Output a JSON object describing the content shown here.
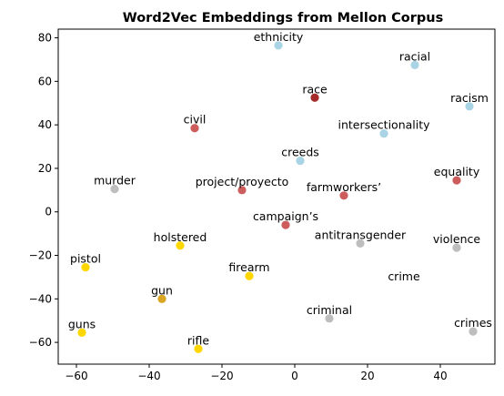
{
  "chart_data": {
    "type": "scatter",
    "title": "Word2Vec Embeddings from Mellon Corpus",
    "xlabel": "",
    "ylabel": "",
    "xlim": [
      -65,
      55
    ],
    "ylim": [
      -70,
      84
    ],
    "xticks": [
      -60,
      -40,
      -20,
      0,
      20,
      40
    ],
    "yticks": [
      -60,
      -40,
      -20,
      0,
      20,
      40,
      60,
      80
    ],
    "grid": false,
    "points": [
      {
        "label": "ethnicity",
        "x": -4.5,
        "y": 76.5,
        "color": "#a8d4e6",
        "marker": true
      },
      {
        "label": "racial",
        "x": 33,
        "y": 67.5,
        "color": "#a8d4e6",
        "marker": true
      },
      {
        "label": "race",
        "x": 5.5,
        "y": 52.5,
        "color": "#a52a2a",
        "marker": true
      },
      {
        "label": "racism",
        "x": 48,
        "y": 48.5,
        "color": "#a8d4e6",
        "marker": true
      },
      {
        "label": "civil",
        "x": -27.5,
        "y": 38.5,
        "color": "#cd5c5c",
        "marker": true
      },
      {
        "label": "intersectionality",
        "x": 24.5,
        "y": 36,
        "color": "#a8d4e6",
        "marker": true
      },
      {
        "label": "creeds",
        "x": 1.5,
        "y": 23.5,
        "color": "#a8d4e6",
        "marker": true
      },
      {
        "label": "equality",
        "x": 44.5,
        "y": 14.5,
        "color": "#cd5c5c",
        "marker": true
      },
      {
        "label": "murder",
        "x": -49.5,
        "y": 10.5,
        "color": "#bebebe",
        "marker": true
      },
      {
        "label": "project/proyecto",
        "x": -14.5,
        "y": 10,
        "color": "#cd5c5c",
        "marker": true
      },
      {
        "label": "farmworkers’",
        "x": 13.5,
        "y": 7.5,
        "color": "#cd5c5c",
        "marker": true
      },
      {
        "label": "campaign’s",
        "x": -2.5,
        "y": -6,
        "color": "#cd5c5c",
        "marker": true
      },
      {
        "label": "antitransgender",
        "x": 18,
        "y": -14.5,
        "color": "#bebebe",
        "marker": true
      },
      {
        "label": "holstered",
        "x": -31.5,
        "y": -15.5,
        "color": "#ffd700",
        "marker": true
      },
      {
        "label": "violence",
        "x": 44.5,
        "y": -16.5,
        "color": "#bebebe",
        "marker": true
      },
      {
        "label": "pistol",
        "x": -57.5,
        "y": -25.5,
        "color": "#ffd700",
        "marker": true
      },
      {
        "label": "firearm",
        "x": -12.5,
        "y": -29.5,
        "color": "#ffd700",
        "marker": true
      },
      {
        "label": "crime",
        "x": 30,
        "y": -33.5,
        "color": "#ffffff",
        "marker": false
      },
      {
        "label": "gun",
        "x": -36.5,
        "y": -40,
        "color": "#daa520",
        "marker": true
      },
      {
        "label": "criminal",
        "x": 9.5,
        "y": -49,
        "color": "#bebebe",
        "marker": true
      },
      {
        "label": "guns",
        "x": -58.5,
        "y": -55.5,
        "color": "#ffd700",
        "marker": true
      },
      {
        "label": "crimes",
        "x": 49,
        "y": -55,
        "color": "#bebebe",
        "marker": true
      },
      {
        "label": "rifle",
        "x": -26.5,
        "y": -63,
        "color": "#ffd700",
        "marker": true
      }
    ]
  }
}
